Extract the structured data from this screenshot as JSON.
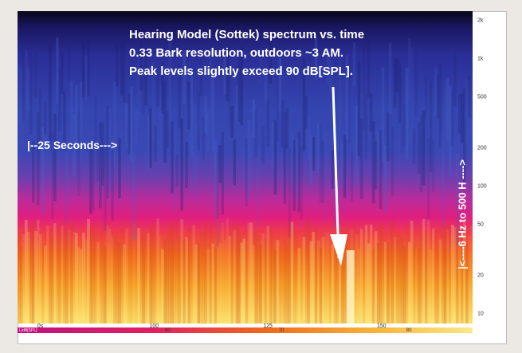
{
  "chart_data": {
    "type": "heatmap",
    "title_lines": [
      "Hearing Model (Sottek) spectrum vs. time",
      "0.33 Bark resolution, outdoors ~3 AM.",
      "Peak levels slightly exceed 90 dB[SPL]."
    ],
    "duration_annotation": "|--25 Seconds--->",
    "vertical_annotation": "|<----6 Hz          to          500 H ---->",
    "y_axis": {
      "scale": "log",
      "ticks": [
        "2k",
        "1k",
        "500",
        "200",
        "100",
        "50",
        "20",
        "10"
      ],
      "tick_values": [
        2000,
        1000,
        500,
        200,
        100,
        50,
        20,
        10
      ]
    },
    "x_axis": {
      "ticks": [
        "0s",
        "100",
        "125",
        "150"
      ],
      "tick_fraction": [
        0.05,
        0.3,
        0.55,
        0.8
      ]
    },
    "colorbar": {
      "unit": "L/dB[SPL]",
      "labels": [
        "60",
        "70",
        "80"
      ],
      "label_fraction": [
        0.33,
        0.58,
        0.86
      ]
    },
    "arrow_time_fraction": 0.73,
    "peak_level_db": 90
  },
  "colors": {
    "low": "#0c0c38",
    "mid_blue": "#3240a8",
    "magenta": "#d0208a",
    "orange": "#f06a1a",
    "yellow": "#f8e060"
  }
}
